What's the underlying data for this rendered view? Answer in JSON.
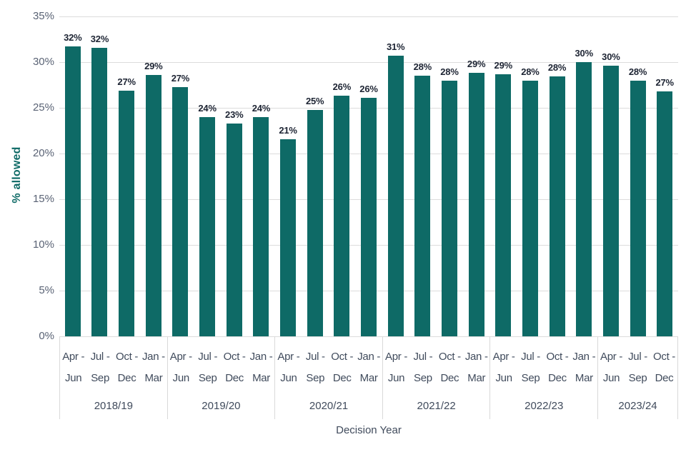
{
  "chart_data": {
    "type": "bar",
    "title": "",
    "xlabel": "Decision Year",
    "ylabel": "% allowed",
    "ylim": [
      0,
      35
    ],
    "grid": true,
    "legend": false,
    "bar_color": "#0e6a66",
    "gridline_color": "#dcdcdc",
    "divider_color": "#d9d9d9",
    "data_label_color": "#1d2433",
    "axis_label_color": "#404b5c",
    "tick_label_color": "#5a6375",
    "yticks": [
      {
        "value": 0,
        "label": "0%"
      },
      {
        "value": 5,
        "label": "5%"
      },
      {
        "value": 10,
        "label": "10%"
      },
      {
        "value": 15,
        "label": "15%"
      },
      {
        "value": 20,
        "label": "20%"
      },
      {
        "value": 25,
        "label": "25%"
      },
      {
        "value": 30,
        "label": "30%"
      },
      {
        "value": 35,
        "label": "35%"
      }
    ],
    "groups": [
      {
        "year": "2018/19",
        "bars": [
          {
            "quarter_line1": "Apr -",
            "quarter_line2": "Jun",
            "label": "32%",
            "value": 31.7
          },
          {
            "quarter_line1": "Jul -",
            "quarter_line2": "Sep",
            "label": "32%",
            "value": 31.6
          },
          {
            "quarter_line1": "Oct -",
            "quarter_line2": "Dec",
            "label": "27%",
            "value": 26.9
          },
          {
            "quarter_line1": "Jan -",
            "quarter_line2": "Mar",
            "label": "29%",
            "value": 28.6
          }
        ]
      },
      {
        "year": "2019/20",
        "bars": [
          {
            "quarter_line1": "Apr -",
            "quarter_line2": "Jun",
            "label": "27%",
            "value": 27.3
          },
          {
            "quarter_line1": "Jul -",
            "quarter_line2": "Sep",
            "label": "24%",
            "value": 24.0
          },
          {
            "quarter_line1": "Oct -",
            "quarter_line2": "Dec",
            "label": "23%",
            "value": 23.3
          },
          {
            "quarter_line1": "Jan -",
            "quarter_line2": "Mar",
            "label": "24%",
            "value": 24.0
          }
        ]
      },
      {
        "year": "2020/21",
        "bars": [
          {
            "quarter_line1": "Apr -",
            "quarter_line2": "Jun",
            "label": "21%",
            "value": 21.6
          },
          {
            "quarter_line1": "Jul -",
            "quarter_line2": "Sep",
            "label": "25%",
            "value": 24.8
          },
          {
            "quarter_line1": "Oct -",
            "quarter_line2": "Dec",
            "label": "26%",
            "value": 26.3
          },
          {
            "quarter_line1": "Jan -",
            "quarter_line2": "Mar",
            "label": "26%",
            "value": 26.1
          }
        ]
      },
      {
        "year": "2021/22",
        "bars": [
          {
            "quarter_line1": "Apr -",
            "quarter_line2": "Jun",
            "label": "31%",
            "value": 30.7
          },
          {
            "quarter_line1": "Jul -",
            "quarter_line2": "Sep",
            "label": "28%",
            "value": 28.5
          },
          {
            "quarter_line1": "Oct -",
            "quarter_line2": "Dec",
            "label": "28%",
            "value": 28.0
          },
          {
            "quarter_line1": "Jan -",
            "quarter_line2": "Mar",
            "label": "29%",
            "value": 28.8
          }
        ]
      },
      {
        "year": "2022/23",
        "bars": [
          {
            "quarter_line1": "Apr -",
            "quarter_line2": "Jun",
            "label": "29%",
            "value": 28.7
          },
          {
            "quarter_line1": "Jul -",
            "quarter_line2": "Sep",
            "label": "28%",
            "value": 28.0
          },
          {
            "quarter_line1": "Oct -",
            "quarter_line2": "Dec",
            "label": "28%",
            "value": 28.4
          },
          {
            "quarter_line1": "Jan -",
            "quarter_line2": "Mar",
            "label": "30%",
            "value": 30.0
          }
        ]
      },
      {
        "year": "2023/24",
        "bars": [
          {
            "quarter_line1": "Apr -",
            "quarter_line2": "Jun",
            "label": "30%",
            "value": 29.6
          },
          {
            "quarter_line1": "Jul -",
            "quarter_line2": "Sep",
            "label": "28%",
            "value": 28.0
          },
          {
            "quarter_line1": "Oct -",
            "quarter_line2": "Dec",
            "label": "27%",
            "value": 26.8
          }
        ]
      }
    ]
  }
}
